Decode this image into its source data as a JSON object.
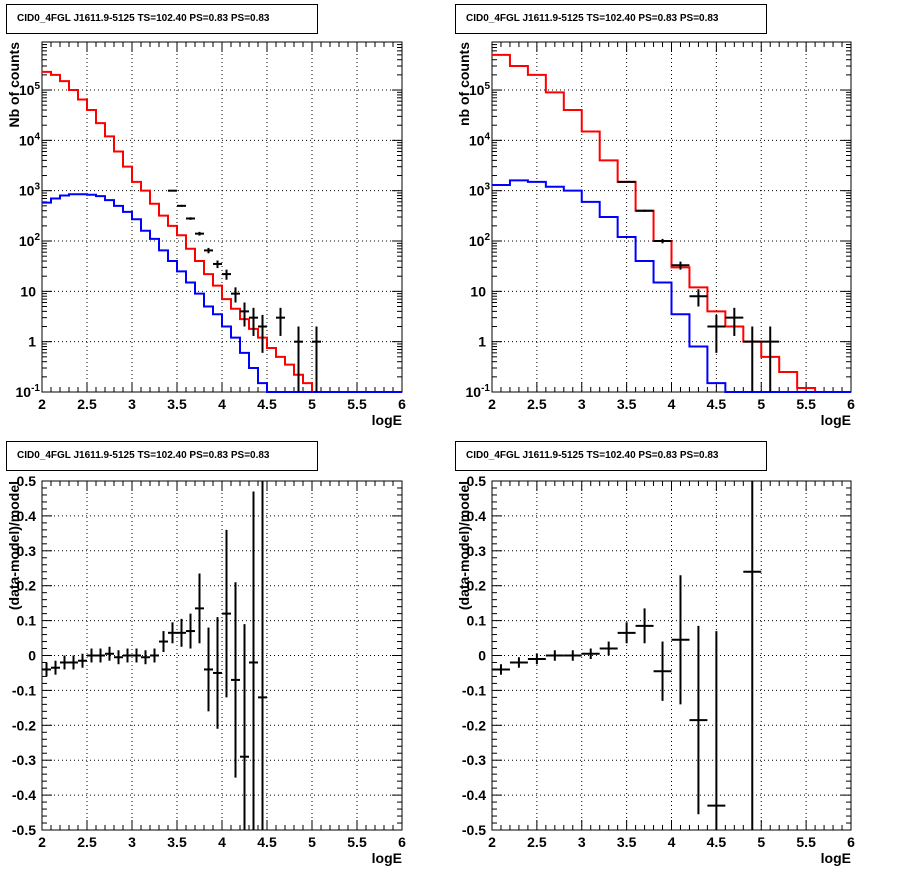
{
  "chart_data": [
    {
      "type": "line",
      "title": "CID0_4FGL J1611.9-5125 TS=102.40 PS=0.83 PS=0.83",
      "xlabel": "logE",
      "ylabel": "Nb of counts",
      "xlim": [
        2,
        6
      ],
      "ylim": [
        0.1,
        900000
      ],
      "log_y": true,
      "grid": true,
      "x_ticks": [
        "2",
        "2.5",
        "3",
        "3.5",
        "4",
        "4.5",
        "5",
        "5.5",
        "6"
      ],
      "y_ticks": [
        "10^-1",
        "1",
        "10",
        "10^2",
        "10^3",
        "10^4",
        "10^5"
      ],
      "bin_width": 0.1,
      "series": [
        {
          "color": "#ff0000",
          "style": "step",
          "x": [
            2.0,
            2.1,
            2.2,
            2.3,
            2.4,
            2.5,
            2.6,
            2.7,
            2.8,
            2.9,
            3.0,
            3.1,
            3.2,
            3.3,
            3.4,
            3.5,
            3.6,
            3.7,
            3.8,
            3.9,
            4.0,
            4.1,
            4.2,
            4.3,
            4.4,
            4.5,
            4.6,
            4.7,
            4.8,
            4.9,
            5.0,
            5.1,
            5.2,
            5.3,
            5.4,
            5.5,
            5.6,
            5.7,
            5.8,
            5.9
          ],
          "values": [
            230000,
            200000,
            150000,
            100000,
            65000,
            40000,
            22000,
            12000,
            6000,
            3000,
            1500,
            1000,
            550,
            320,
            200,
            130,
            70,
            40,
            22,
            13,
            7,
            4.5,
            2.8,
            1.8,
            1.2,
            0.75,
            0.5,
            0.35,
            0.22,
            0.15,
            0.1,
            0.1,
            0.1,
            0.1,
            0.1,
            0.1,
            0.1,
            0.1,
            0.1,
            0.1
          ]
        },
        {
          "color": "#0000ff",
          "style": "step",
          "x": [
            2.0,
            2.1,
            2.2,
            2.3,
            2.4,
            2.5,
            2.6,
            2.7,
            2.8,
            2.9,
            3.0,
            3.1,
            3.2,
            3.3,
            3.4,
            3.5,
            3.6,
            3.7,
            3.8,
            3.9,
            4.0,
            4.1,
            4.2,
            4.3,
            4.4,
            4.5,
            4.6,
            4.7,
            4.8,
            4.9,
            5.0,
            5.1,
            5.2,
            5.3,
            5.4,
            5.5,
            5.6,
            5.7,
            5.8,
            5.9
          ],
          "values": [
            580,
            700,
            800,
            850,
            850,
            830,
            780,
            650,
            500,
            380,
            270,
            160,
            110,
            65,
            40,
            25,
            15,
            9,
            5,
            3.5,
            2,
            1.2,
            0.6,
            0.3,
            0.15,
            0.1,
            0.1,
            0.1,
            0.1,
            0.1,
            0.1,
            0.1,
            0.1,
            0.1,
            0.1,
            0.1,
            0.1,
            0.1,
            0.1,
            0.1
          ]
        },
        {
          "color": "#000000",
          "style": "errorbar",
          "x": [
            3.45,
            3.55,
            3.65,
            3.75,
            3.85,
            3.95,
            4.05,
            4.15,
            4.25,
            4.35,
            4.45,
            4.65,
            4.85,
            5.05
          ],
          "values": [
            1000,
            500,
            280,
            140,
            65,
            35,
            22,
            9,
            4,
            3,
            2,
            3,
            1,
            1
          ],
          "err": [
            32,
            22,
            17,
            12,
            8,
            6,
            5,
            3,
            2,
            1.7,
            1.4,
            1.7,
            1,
            1
          ]
        }
      ]
    },
    {
      "type": "line",
      "title": "CID0_4FGL J1611.9-5125 TS=102.40 PS=0.83 PS=0.83",
      "xlabel": "logE",
      "ylabel": "nb of counts",
      "xlim": [
        2,
        6
      ],
      "ylim": [
        0.1,
        900000
      ],
      "log_y": true,
      "grid": true,
      "x_ticks": [
        "2",
        "2.5",
        "3",
        "3.5",
        "4",
        "4.5",
        "5",
        "5.5",
        "6"
      ],
      "y_ticks": [
        "10^-1",
        "1",
        "10",
        "10^2",
        "10^3",
        "10^4",
        "10^5"
      ],
      "bin_width": 0.2,
      "series": [
        {
          "color": "#ff0000",
          "style": "step",
          "x": [
            2.0,
            2.2,
            2.4,
            2.6,
            2.8,
            3.0,
            3.2,
            3.4,
            3.6,
            3.8,
            4.0,
            4.2,
            4.4,
            4.6,
            4.8,
            5.0,
            5.2,
            5.4,
            5.6,
            5.8
          ],
          "values": [
            500000,
            300000,
            200000,
            90000,
            40000,
            15000,
            4000,
            1500,
            400,
            100,
            30,
            12,
            4,
            2,
            1,
            0.5,
            0.25,
            0.12,
            0.1,
            0.1
          ]
        },
        {
          "color": "#0000ff",
          "style": "step",
          "x": [
            2.0,
            2.2,
            2.4,
            2.6,
            2.8,
            3.0,
            3.2,
            3.4,
            3.6,
            3.8,
            4.0,
            4.2,
            4.4,
            4.6,
            4.8,
            5.0,
            5.2,
            5.4,
            5.6,
            5.8
          ],
          "values": [
            1300,
            1600,
            1500,
            1200,
            1000,
            600,
            300,
            120,
            40,
            15,
            3.5,
            0.8,
            0.15,
            0.1,
            0.1,
            0.1,
            0.1,
            0.1,
            0.1,
            0.1
          ]
        },
        {
          "color": "#000000",
          "style": "errorbar",
          "x": [
            3.5,
            3.7,
            3.9,
            4.1,
            4.3,
            4.5,
            4.7,
            4.9,
            5.1
          ],
          "values": [
            1500,
            400,
            100,
            33,
            8,
            2,
            3,
            1,
            1
          ],
          "err": [
            39,
            20,
            10,
            6,
            3,
            1.4,
            1.7,
            1,
            1
          ]
        }
      ]
    },
    {
      "type": "scatter",
      "title": "CID0_4FGL J1611.9-5125 TS=102.40 PS=0.83 PS=0.83",
      "xlabel": "logE",
      "ylabel": "(data-model)/model",
      "xlim": [
        2,
        6
      ],
      "ylim": [
        -0.5,
        0.5
      ],
      "grid": true,
      "x_ticks": [
        "2",
        "2.5",
        "3",
        "3.5",
        "4",
        "4.5",
        "5",
        "5.5",
        "6"
      ],
      "y_ticks": [
        "-0.5",
        "-0.4",
        "-0.3",
        "-0.2",
        "-0.1",
        "0",
        "0.1",
        "0.2",
        "0.3",
        "0.4",
        "0.5"
      ],
      "bin_width": 0.1,
      "series": [
        {
          "color": "#000000",
          "style": "errorbar",
          "x": [
            2.05,
            2.15,
            2.25,
            2.35,
            2.45,
            2.55,
            2.65,
            2.75,
            2.85,
            2.95,
            3.05,
            3.15,
            3.25,
            3.35,
            3.45,
            3.55,
            3.65,
            3.75,
            3.85,
            3.95,
            4.05,
            4.15,
            4.25,
            4.35,
            4.45
          ],
          "values": [
            -0.04,
            -0.035,
            -0.02,
            -0.02,
            -0.015,
            0.0,
            0.0,
            0.005,
            -0.005,
            0.0,
            0.0,
            -0.005,
            0.0,
            0.04,
            0.065,
            0.065,
            0.07,
            0.135,
            -0.04,
            -0.05,
            0.12,
            -0.07,
            -0.29,
            -0.02,
            -0.12
          ],
          "err": [
            0.02,
            0.02,
            0.02,
            0.02,
            0.02,
            0.02,
            0.02,
            0.02,
            0.02,
            0.02,
            0.02,
            0.02,
            0.02,
            0.03,
            0.03,
            0.04,
            0.05,
            0.1,
            0.12,
            0.16,
            0.24,
            0.28,
            0.38,
            0.49,
            0.62
          ]
        }
      ]
    },
    {
      "type": "scatter",
      "title": "CID0_4FGL J1611.9-5125 TS=102.40 PS=0.83 PS=0.83",
      "xlabel": "logE",
      "ylabel": "(data-model)/model",
      "xlim": [
        2,
        6
      ],
      "ylim": [
        -0.5,
        0.5
      ],
      "grid": true,
      "x_ticks": [
        "2",
        "2.5",
        "3",
        "3.5",
        "4",
        "4.5",
        "5",
        "5.5",
        "6"
      ],
      "y_ticks": [
        "-0.5",
        "-0.4",
        "-0.3",
        "-0.2",
        "-0.1",
        "0",
        "0.1",
        "0.2",
        "0.3",
        "0.4",
        "0.5"
      ],
      "bin_width": 0.2,
      "series": [
        {
          "color": "#000000",
          "style": "errorbar",
          "x": [
            2.1,
            2.3,
            2.5,
            2.7,
            2.9,
            3.1,
            3.3,
            3.5,
            3.7,
            3.9,
            4.1,
            4.3,
            4.5,
            4.9
          ],
          "values": [
            -0.04,
            -0.02,
            -0.01,
            0.0,
            0.0,
            0.005,
            0.02,
            0.065,
            0.085,
            -0.045,
            0.045,
            -0.185,
            -0.43,
            0.24
          ],
          "err": [
            0.015,
            0.015,
            0.015,
            0.015,
            0.015,
            0.015,
            0.02,
            0.03,
            0.05,
            0.085,
            0.185,
            0.27,
            0.5,
            1.0
          ]
        }
      ]
    }
  ]
}
